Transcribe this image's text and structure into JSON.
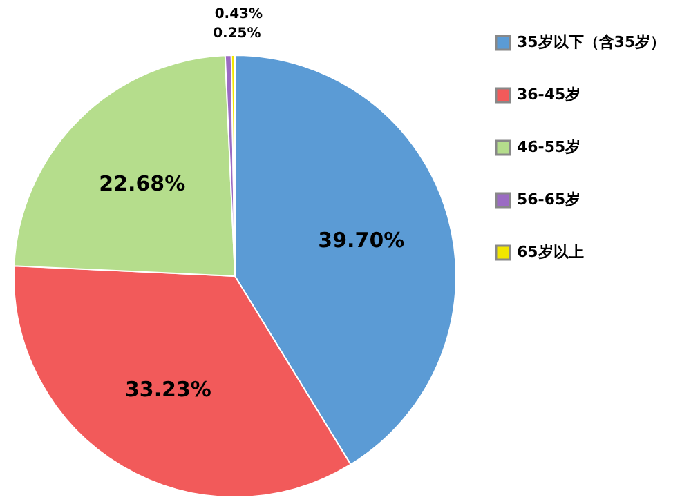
{
  "chart_data": {
    "type": "pie",
    "categories": [
      "35岁以下（含35岁）",
      "36-45岁",
      "46-55岁",
      "56-65岁",
      "65岁以上"
    ],
    "values": [
      39.7,
      33.23,
      22.68,
      0.43,
      0.25
    ],
    "colors": [
      "#5b9bd5",
      "#f25a5a",
      "#b5dd8c",
      "#9b6bc3",
      "#f2e600"
    ],
    "value_labels": [
      "39.70%",
      "33.23%",
      "22.68%",
      "0.43%",
      "0.25%"
    ],
    "legend": "right"
  }
}
